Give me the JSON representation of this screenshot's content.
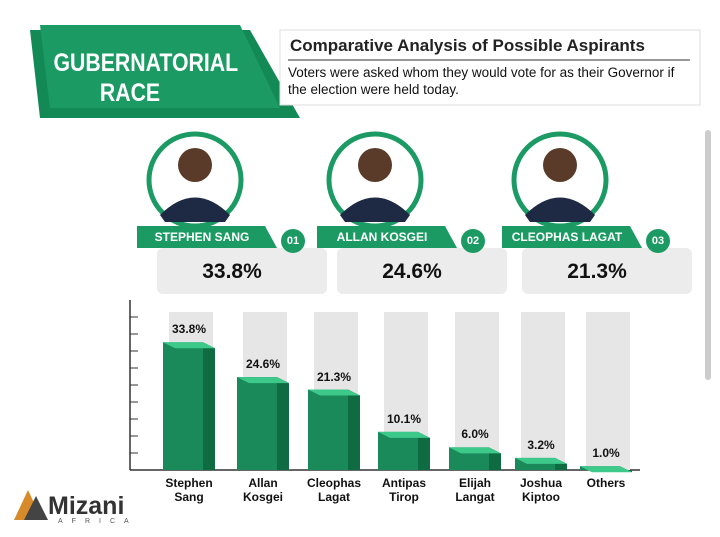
{
  "header": {
    "race": "GUBERNATORIAL RACE",
    "title": "Comparative Analysis of Possible Aspirants",
    "subtitle": "Voters were asked whom they would vote for as their Governor if the election were held today."
  },
  "candidates": [
    {
      "name": "STEPHEN SANG",
      "rank": "01",
      "share": "33.8%"
    },
    {
      "name": "ALLAN KOSGEI",
      "rank": "02",
      "share": "24.6%"
    },
    {
      "name": "CLEOPHAS LAGAT",
      "rank": "03",
      "share": "21.3%"
    }
  ],
  "logo": {
    "name": "Mizani",
    "tagline": "AFRICA"
  },
  "chart_data": {
    "type": "bar",
    "categories": [
      "Stephen Sang",
      "Allan Kosgei",
      "Cleophas Lagat",
      "Antipas Tirop",
      "Elijah Langat",
      "Joshua Kiptoo",
      "Others"
    ],
    "values": [
      33.8,
      24.6,
      21.3,
      10.1,
      6.0,
      3.2,
      1.0
    ],
    "value_labels": [
      "33.8%",
      "24.6%",
      "21.3%",
      "10.1%",
      "6.0%",
      "3.2%",
      "1.0%"
    ],
    "color": "#1a8a5a",
    "ylim": [
      0,
      45
    ]
  }
}
